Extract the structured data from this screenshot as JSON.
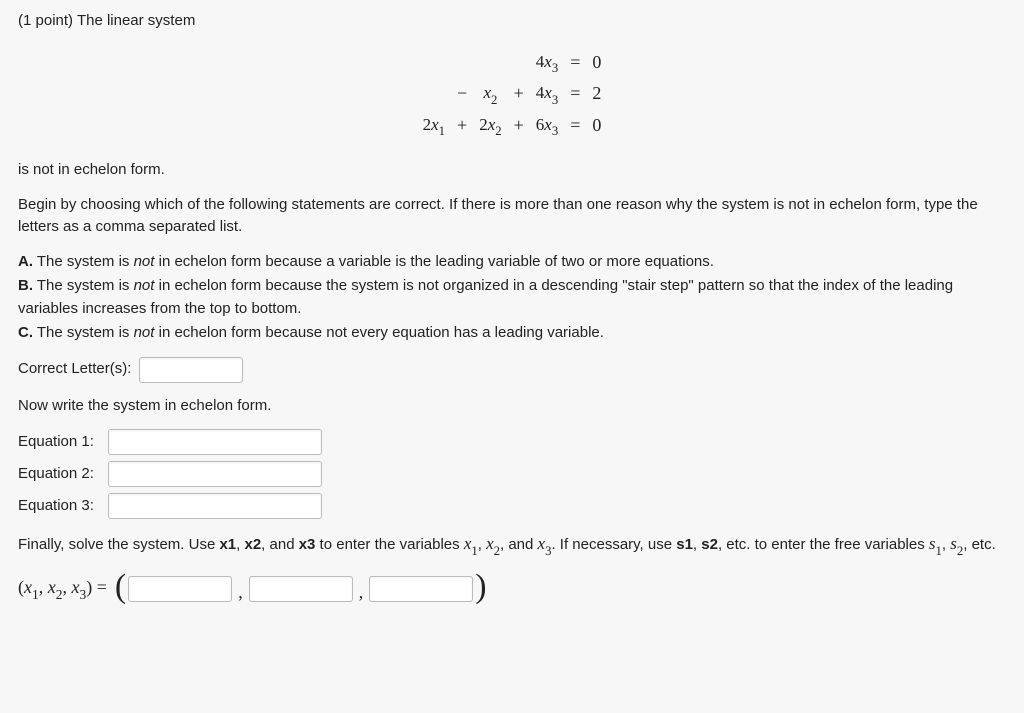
{
  "header": {
    "points_prefix": "(1 point) ",
    "problem_intro": "The linear system"
  },
  "equations": {
    "rows": [
      {
        "c1": "",
        "c2": "",
        "c3": "",
        "c4": "",
        "c5": "4x₃",
        "c6": "=",
        "c7": "0"
      },
      {
        "c1": "",
        "c2": "−",
        "c3": "x₂",
        "c4": "+",
        "c5": "4x₃",
        "c6": "=",
        "c7": "2"
      },
      {
        "c1": "2x₁",
        "c2": "+",
        "c3": "2x₂",
        "c4": "+",
        "c5": "6x₃",
        "c6": "=",
        "c7": "0"
      }
    ]
  },
  "statements": {
    "not_echelon": "is not in echelon form.",
    "choose_prompt": "Begin by choosing which of the following statements are correct. If there is more than one reason why the system is not in echelon form, type the letters as a comma separated list.",
    "A_prefix": "A.",
    "A_text1": " The system is ",
    "A_not": "not",
    "A_text2": " in echelon form because a variable is the leading variable of two or more equations.",
    "B_prefix": "B.",
    "B_text1": " The system is ",
    "B_not": "not",
    "B_text2": " in echelon form because the system is not organized in a descending \"stair step\" pattern so that the index of the leading variables increases from the top to bottom.",
    "C_prefix": "C.",
    "C_text1": " The system is ",
    "C_not": "not",
    "C_text2": " in echelon form because not every equation has a leading variable."
  },
  "letters_field": {
    "label": "Correct Letter(s):",
    "value": ""
  },
  "rewrite": {
    "prompt": "Now write the system in echelon form.",
    "eq1_label": "Equation 1:",
    "eq2_label": "Equation 2:",
    "eq3_label": "Equation 3:",
    "eq1_value": "",
    "eq2_value": "",
    "eq3_value": ""
  },
  "solve": {
    "prompt_a": "Finally, solve the system. Use ",
    "x1b": "x1",
    "c1": ", ",
    "x2b": "x2",
    "c2": ", and ",
    "x3b": "x3",
    "prompt_b": " to enter the variables ",
    "v1": "x₁",
    "d1": ", ",
    "v2": "x₂",
    "d2": ", and ",
    "v3": "x₃",
    "prompt_c": ". If necessary, use ",
    "s1b": "s1",
    "e1": ", ",
    "s2b": "s2",
    "prompt_d": ", etc. to enter the free variables ",
    "sv1": "s₁",
    "f1": ", ",
    "sv2": "s₂",
    "prompt_e": ", etc."
  },
  "tuple": {
    "lhs": "(x₁, x₂, x₃) = ",
    "open": "(",
    "close": ")",
    "comma": ",",
    "v1": "",
    "v2": "",
    "v3": ""
  }
}
